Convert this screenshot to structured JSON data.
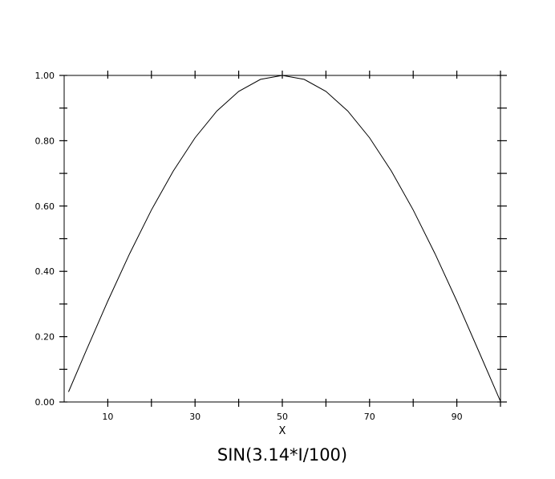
{
  "chart_data": {
    "type": "line",
    "title": "SIN(3.14*I/100)",
    "xlabel": "X",
    "ylabel": "",
    "xlim": [
      0,
      100
    ],
    "ylim": [
      0,
      1
    ],
    "x_ticks": [
      10,
      20,
      30,
      40,
      50,
      60,
      70,
      80,
      90,
      100
    ],
    "x_tick_labels": [
      "10",
      "",
      "30",
      "",
      "50",
      "",
      "70",
      "",
      "90",
      ""
    ],
    "y_ticks": [
      0,
      0.1,
      0.2,
      0.3,
      0.4,
      0.5,
      0.6,
      0.7,
      0.8,
      0.9,
      1.0
    ],
    "y_tick_labels": [
      "0.00",
      "",
      "0.20",
      "",
      "0.40",
      "",
      "0.60",
      "",
      "0.80",
      "",
      "1.00"
    ],
    "grid": false,
    "legend": "none",
    "series": [
      {
        "x": [
          1,
          5,
          10,
          15,
          20,
          25,
          30,
          35,
          40,
          45,
          50,
          55,
          60,
          65,
          70,
          75,
          80,
          85,
          90,
          95,
          100
        ],
        "values": [
          0.031,
          0.156,
          0.309,
          0.454,
          0.588,
          0.707,
          0.809,
          0.891,
          0.951,
          0.988,
          1.0,
          0.988,
          0.951,
          0.891,
          0.809,
          0.707,
          0.588,
          0.454,
          0.309,
          0.156,
          0.002
        ],
        "color": "#000000"
      }
    ]
  }
}
